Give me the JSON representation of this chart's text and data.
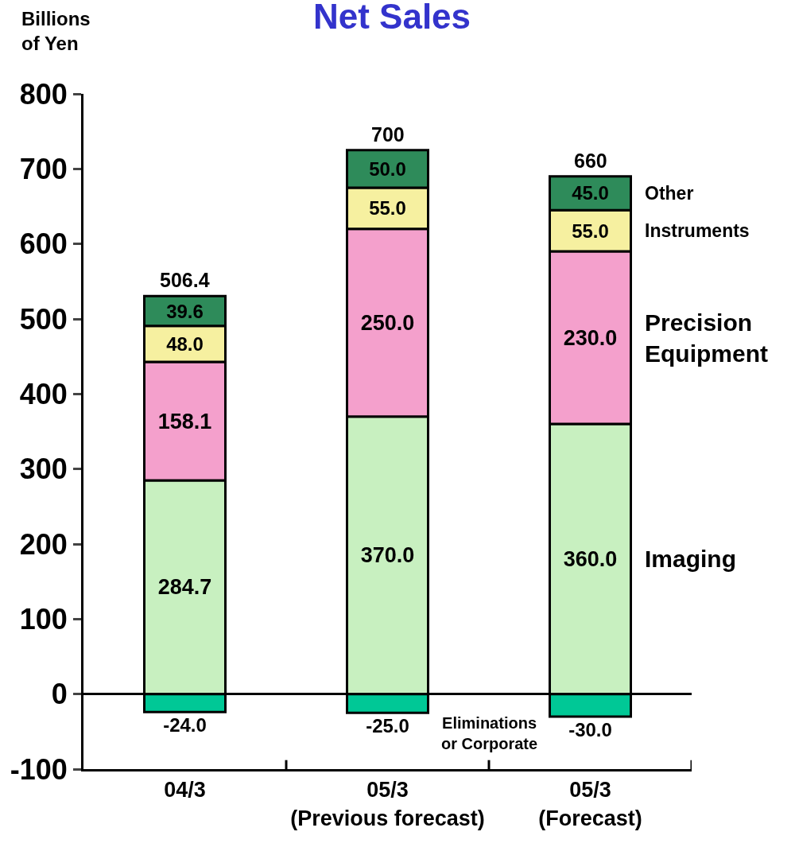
{
  "chart_data": {
    "type": "bar",
    "title": "Net Sales",
    "ylabel": "Billions\nof Yen",
    "stacked": true,
    "categories": [
      "04/3",
      "05/3\n(Previous forecast)",
      "05/3\n(Forecast)"
    ],
    "ylim": [
      -100,
      800
    ],
    "yticks": [
      -100,
      0,
      100,
      200,
      300,
      400,
      500,
      600,
      700,
      800
    ],
    "series": [
      {
        "name": "Imaging",
        "color": "#c8f0c0",
        "values": [
          284.7,
          370.0,
          360.0
        ],
        "value_labels": [
          "284.7",
          "370.0",
          "360.0"
        ]
      },
      {
        "name": "Precision\nEquipment",
        "color": "#f4a0cc",
        "values": [
          158.1,
          250.0,
          230.0
        ],
        "value_labels": [
          "158.1",
          "250.0",
          "230.0"
        ]
      },
      {
        "name": "Instruments",
        "color": "#f6f0a0",
        "values": [
          48.0,
          55.0,
          55.0
        ],
        "value_labels": [
          "48.0",
          "55.0",
          "55.0"
        ]
      },
      {
        "name": "Other",
        "color": "#2e8b5a",
        "values": [
          39.6,
          50.0,
          45.0
        ],
        "value_labels": [
          "39.6",
          "50.0",
          "45.0"
        ]
      },
      {
        "name": "Eliminations\nor Corporate",
        "color": "#00c896",
        "values": [
          -24.0,
          -25.0,
          -30.0
        ],
        "value_labels": [
          "-24.0",
          "-25.0",
          "-30.0"
        ]
      }
    ],
    "totals": [
      "506.4",
      "700",
      "660"
    ]
  }
}
